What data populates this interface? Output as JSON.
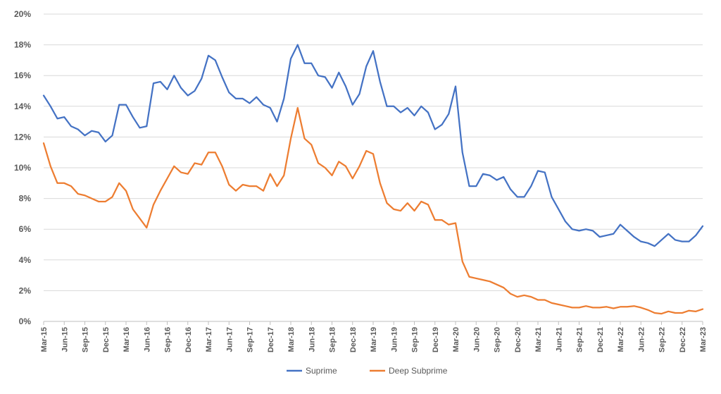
{
  "chart_data": {
    "type": "line",
    "title": "",
    "xlabel": "",
    "ylabel": "",
    "ylim": [
      0,
      20
    ],
    "yticks": [
      "0%",
      "2%",
      "4%",
      "6%",
      "8%",
      "10%",
      "12%",
      "14%",
      "16%",
      "18%",
      "20%"
    ],
    "y_unit": "%",
    "grid": "horizontal",
    "legend_position": "bottom",
    "x": [
      "Mar-15",
      "Apr-15",
      "May-15",
      "Jun-15",
      "Jul-15",
      "Aug-15",
      "Sep-15",
      "Oct-15",
      "Nov-15",
      "Dec-15",
      "Jan-16",
      "Feb-16",
      "Mar-16",
      "Apr-16",
      "May-16",
      "Jun-16",
      "Jul-16",
      "Aug-16",
      "Sep-16",
      "Oct-16",
      "Nov-16",
      "Dec-16",
      "Jan-17",
      "Feb-17",
      "Mar-17",
      "Apr-17",
      "May-17",
      "Jun-17",
      "Jul-17",
      "Aug-17",
      "Sep-17",
      "Oct-17",
      "Nov-17",
      "Dec-17",
      "Jan-18",
      "Feb-18",
      "Mar-18",
      "Apr-18",
      "May-18",
      "Jun-18",
      "Jul-18",
      "Aug-18",
      "Sep-18",
      "Oct-18",
      "Nov-18",
      "Dec-18",
      "Jan-19",
      "Feb-19",
      "Mar-19",
      "Apr-19",
      "May-19",
      "Jun-19",
      "Jul-19",
      "Aug-19",
      "Sep-19",
      "Oct-19",
      "Nov-19",
      "Dec-19",
      "Jan-20",
      "Feb-20",
      "Mar-20",
      "Apr-20",
      "May-20",
      "Jun-20",
      "Jul-20",
      "Aug-20",
      "Sep-20",
      "Oct-20",
      "Nov-20",
      "Dec-20",
      "Jan-21",
      "Feb-21",
      "Mar-21",
      "Apr-21",
      "May-21",
      "Jun-21",
      "Jul-21",
      "Aug-21",
      "Sep-21",
      "Oct-21",
      "Nov-21",
      "Dec-21",
      "Jan-22",
      "Feb-22",
      "Mar-22",
      "Apr-22",
      "May-22",
      "Jun-22",
      "Jul-22",
      "Aug-22",
      "Sep-22",
      "Oct-22",
      "Nov-22",
      "Dec-22",
      "Jan-23",
      "Feb-23",
      "Mar-23"
    ],
    "x_tick_labels": [
      "Mar-15",
      "Jun-15",
      "Sep-15",
      "Dec-15",
      "Mar-16",
      "Jun-16",
      "Sep-16",
      "Dec-16",
      "Mar-17",
      "Jun-17",
      "Sep-17",
      "Dec-17",
      "Mar-18",
      "Jun-18",
      "Sep-18",
      "Dec-18",
      "Mar-19",
      "Jun-19",
      "Sep-19",
      "Dec-19",
      "Mar-20",
      "Jun-20",
      "Sep-20",
      "Dec-20",
      "Mar-21",
      "Jun-21",
      "Sep-21",
      "Dec-21",
      "Mar-22",
      "Jun-22",
      "Sep-22",
      "Dec-22",
      "Mar-23"
    ],
    "series": [
      {
        "name": "Suprime",
        "color": "#4472C4",
        "values": [
          14.7,
          14.0,
          13.2,
          13.3,
          12.7,
          12.5,
          12.1,
          12.4,
          12.3,
          11.7,
          12.1,
          14.1,
          14.1,
          13.3,
          12.6,
          12.7,
          15.5,
          15.6,
          15.1,
          16.0,
          15.2,
          14.7,
          15.0,
          15.8,
          17.3,
          17.0,
          15.9,
          14.9,
          14.5,
          14.5,
          14.2,
          14.6,
          14.1,
          13.9,
          13.0,
          14.5,
          17.1,
          18.0,
          16.8,
          16.8,
          16.0,
          15.9,
          15.2,
          16.2,
          15.3,
          14.1,
          14.8,
          16.6,
          17.6,
          15.6,
          14.0,
          14.0,
          13.6,
          13.9,
          13.4,
          14.0,
          13.6,
          12.5,
          12.8,
          13.5,
          15.3,
          11.0,
          8.8,
          8.8,
          9.6,
          9.5,
          9.2,
          9.4,
          8.6,
          8.1,
          8.1,
          8.8,
          9.8,
          9.7,
          8.1,
          7.3,
          6.5,
          6.0,
          5.9,
          6.0,
          5.9,
          5.5,
          5.6,
          5.7,
          6.3,
          5.9,
          5.5,
          5.2,
          5.1,
          4.9,
          5.3,
          5.7,
          5.3,
          5.2,
          5.2,
          5.6,
          6.2
        ]
      },
      {
        "name": "Deep Subprime",
        "color": "#ED7D31",
        "values": [
          11.6,
          10.1,
          9.0,
          9.0,
          8.8,
          8.3,
          8.2,
          8.0,
          7.8,
          7.8,
          8.1,
          9.0,
          8.5,
          7.3,
          6.7,
          6.1,
          7.6,
          8.5,
          9.3,
          10.1,
          9.7,
          9.6,
          10.3,
          10.2,
          11.0,
          11.0,
          10.1,
          8.9,
          8.5,
          8.9,
          8.8,
          8.8,
          8.5,
          9.6,
          8.8,
          9.5,
          11.9,
          13.9,
          11.9,
          11.5,
          10.3,
          10.0,
          9.5,
          10.4,
          10.1,
          9.3,
          10.1,
          11.1,
          10.9,
          9.0,
          7.7,
          7.3,
          7.2,
          7.7,
          7.2,
          7.8,
          7.6,
          6.6,
          6.6,
          6.3,
          6.4,
          3.9,
          2.9,
          2.8,
          2.7,
          2.6,
          2.4,
          2.2,
          1.8,
          1.6,
          1.7,
          1.6,
          1.4,
          1.4,
          1.2,
          1.1,
          1.0,
          0.9,
          0.9,
          1.0,
          0.9,
          0.9,
          0.95,
          0.85,
          0.95,
          0.95,
          1.0,
          0.9,
          0.75,
          0.55,
          0.5,
          0.65,
          0.55,
          0.55,
          0.7,
          0.65,
          0.8
        ]
      }
    ]
  }
}
